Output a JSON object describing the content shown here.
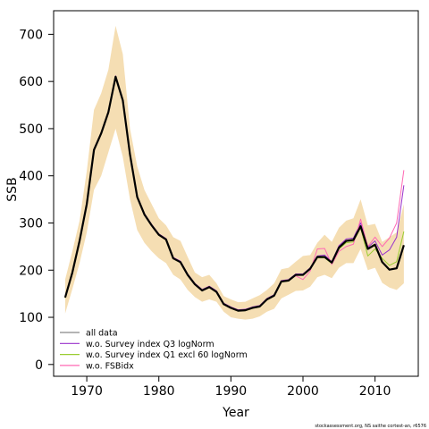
{
  "chart_data": {
    "type": "line",
    "xlabel": "Year",
    "ylabel": "SSB",
    "xlim": [
      1965.4,
      2016
    ],
    "ylim": [
      -25,
      750
    ],
    "x_ticks": [
      1970,
      1980,
      1990,
      2000,
      2010
    ],
    "y_ticks": [
      0,
      100,
      200,
      300,
      400,
      500,
      600,
      700
    ],
    "grid": false,
    "legend_position": "bottom-left",
    "footnote": "stockassessment.org, NS saithe cortest-an, r6576",
    "band": {
      "color": "#f5deb3",
      "x": [
        1967,
        1968,
        1969,
        1970,
        1971,
        1972,
        1973,
        1974,
        1975,
        1976,
        1977,
        1978,
        1979,
        1980,
        1981,
        1982,
        1983,
        1984,
        1985,
        1986,
        1987,
        1988,
        1989,
        1990,
        1991,
        1992,
        1993,
        1994,
        1995,
        1996,
        1997,
        1998,
        1999,
        2000,
        2001,
        2002,
        2003,
        2004,
        2005,
        2006,
        2007,
        2008,
        2009,
        2010,
        2011,
        2012,
        2013,
        2014
      ],
      "lower": [
        108,
        160,
        215,
        280,
        370,
        400,
        450,
        500,
        440,
        350,
        285,
        258,
        240,
        225,
        215,
        190,
        180,
        158,
        143,
        133,
        138,
        133,
        112,
        100,
        97,
        95,
        97,
        102,
        112,
        118,
        140,
        148,
        156,
        157,
        165,
        185,
        190,
        183,
        205,
        215,
        215,
        245,
        200,
        205,
        173,
        163,
        158,
        172
      ],
      "upper": [
        180,
        240,
        305,
        410,
        540,
        575,
        625,
        718,
        658,
        500,
        420,
        370,
        340,
        310,
        295,
        270,
        262,
        228,
        195,
        185,
        190,
        172,
        145,
        138,
        132,
        133,
        140,
        147,
        158,
        172,
        202,
        205,
        218,
        230,
        232,
        258,
        275,
        260,
        290,
        305,
        310,
        350,
        295,
        298,
        260,
        270,
        280,
        340
      ]
    },
    "series": [
      {
        "name": "all data",
        "color": "#000000",
        "width": 2.2,
        "x": [
          1967,
          1968,
          1969,
          1970,
          1971,
          1972,
          1973,
          1974,
          1975,
          1976,
          1977,
          1978,
          1979,
          1980,
          1981,
          1982,
          1983,
          1984,
          1985,
          1986,
          1987,
          1988,
          1989,
          1990,
          1991,
          1992,
          1993,
          1994,
          1995,
          1996,
          1997,
          1998,
          1999,
          2000,
          2001,
          2002,
          2003,
          2004,
          2005,
          2006,
          2007,
          2008,
          2009,
          2010,
          2011,
          2012,
          2013,
          2014
        ],
        "values": [
          142,
          195,
          262,
          340,
          455,
          490,
          535,
          610,
          560,
          445,
          355,
          318,
          295,
          275,
          265,
          225,
          217,
          190,
          170,
          157,
          164,
          154,
          128,
          120,
          114,
          115,
          120,
          123,
          138,
          146,
          176,
          178,
          190,
          190,
          203,
          228,
          228,
          216,
          248,
          262,
          264,
          293,
          245,
          254,
          217,
          201,
          204,
          253
        ]
      },
      {
        "name": "w.o. Survey index Q3 logNorm",
        "color": "#9932cc",
        "width": 1.0,
        "x": [
          1967,
          1968,
          1969,
          1970,
          1971,
          1972,
          1973,
          1974,
          1975,
          1976,
          1977,
          1978,
          1979,
          1980,
          1981,
          1982,
          1983,
          1984,
          1985,
          1986,
          1987,
          1988,
          1989,
          1990,
          1991,
          1992,
          1993,
          1994,
          1995,
          1996,
          1997,
          1998,
          1999,
          2000,
          2001,
          2002,
          2003,
          2004,
          2005,
          2006,
          2007,
          2008,
          2009,
          2010,
          2011,
          2012,
          2013,
          2014
        ],
        "values": [
          143,
          196,
          263,
          342,
          457,
          492,
          537,
          612,
          562,
          447,
          357,
          320,
          297,
          277,
          267,
          227,
          219,
          192,
          172,
          159,
          166,
          156,
          130,
          122,
          116,
          117,
          122,
          125,
          140,
          148,
          178,
          180,
          192,
          192,
          205,
          230,
          232,
          218,
          252,
          266,
          268,
          300,
          248,
          262,
          232,
          243,
          270,
          380
        ]
      },
      {
        "name": "w.o. Survey index Q1 excl 60 logNorm",
        "color": "#9acd32",
        "width": 1.0,
        "x": [
          1967,
          1968,
          1969,
          1970,
          1971,
          1972,
          1973,
          1974,
          1975,
          1976,
          1977,
          1978,
          1979,
          1980,
          1981,
          1982,
          1983,
          1984,
          1985,
          1986,
          1987,
          1988,
          1989,
          1990,
          1991,
          1992,
          1993,
          1994,
          1995,
          1996,
          1997,
          1998,
          1999,
          2000,
          2001,
          2002,
          2003,
          2004,
          2005,
          2006,
          2007,
          2008,
          2009,
          2010,
          2011,
          2012,
          2013,
          2014
        ],
        "values": [
          141,
          194,
          261,
          339,
          454,
          489,
          534,
          609,
          559,
          444,
          354,
          317,
          294,
          274,
          264,
          224,
          216,
          189,
          169,
          156,
          163,
          153,
          127,
          119,
          113,
          114,
          119,
          122,
          137,
          145,
          175,
          177,
          189,
          189,
          202,
          226,
          226,
          214,
          245,
          258,
          260,
          290,
          230,
          245,
          225,
          210,
          218,
          282
        ]
      },
      {
        "name": "w.o. FSBidx",
        "color": "#ff69b4",
        "width": 1.0,
        "x": [
          1967,
          1968,
          1969,
          1970,
          1971,
          1972,
          1973,
          1974,
          1975,
          1976,
          1977,
          1978,
          1979,
          1980,
          1981,
          1982,
          1983,
          1984,
          1985,
          1986,
          1987,
          1988,
          1989,
          1990,
          1991,
          1992,
          1993,
          1994,
          1995,
          1996,
          1997,
          1998,
          1999,
          2000,
          2001,
          2002,
          2003,
          2004,
          2005,
          2006,
          2007,
          2008,
          2009,
          2010,
          2011,
          2012,
          2013,
          2014
        ],
        "values": [
          142,
          195,
          262,
          340,
          455,
          490,
          535,
          611,
          561,
          446,
          356,
          319,
          296,
          276,
          266,
          226,
          218,
          191,
          171,
          158,
          165,
          155,
          129,
          121,
          115,
          116,
          121,
          124,
          139,
          147,
          177,
          179,
          188,
          180,
          198,
          245,
          246,
          212,
          240,
          250,
          255,
          308,
          250,
          270,
          250,
          268,
          300,
          412
        ]
      }
    ]
  }
}
